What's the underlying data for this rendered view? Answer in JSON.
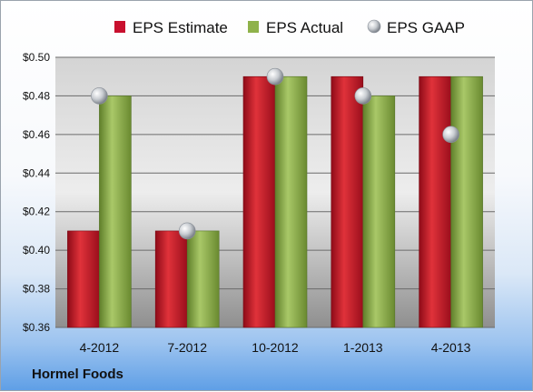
{
  "chart_data": {
    "type": "bar",
    "categories": [
      "4-2012",
      "7-2012",
      "10-2012",
      "1-2013",
      "4-2013"
    ],
    "series": [
      {
        "name": "EPS Estimate",
        "values": [
          0.41,
          0.41,
          0.49,
          0.49,
          0.49
        ],
        "color": "#c8102e",
        "mark": "bar"
      },
      {
        "name": "EPS Actual",
        "values": [
          0.48,
          0.41,
          0.49,
          0.48,
          0.49
        ],
        "color": "#8fb24a",
        "mark": "bar"
      },
      {
        "name": "EPS GAAP",
        "values": [
          0.48,
          0.41,
          0.49,
          0.48,
          0.46
        ],
        "color": "#b7bcc2",
        "mark": "marker"
      }
    ],
    "ylim": [
      0.36,
      0.5
    ],
    "yticks": [
      "$0.36",
      "$0.38",
      "$0.40",
      "$0.42",
      "$0.44",
      "$0.46",
      "$0.48",
      "$0.50"
    ],
    "ytick_values": [
      0.36,
      0.38,
      0.4,
      0.42,
      0.44,
      0.46,
      0.48,
      0.5
    ],
    "grid": true,
    "legend_position": "top"
  },
  "caption": "Hormel Foods"
}
